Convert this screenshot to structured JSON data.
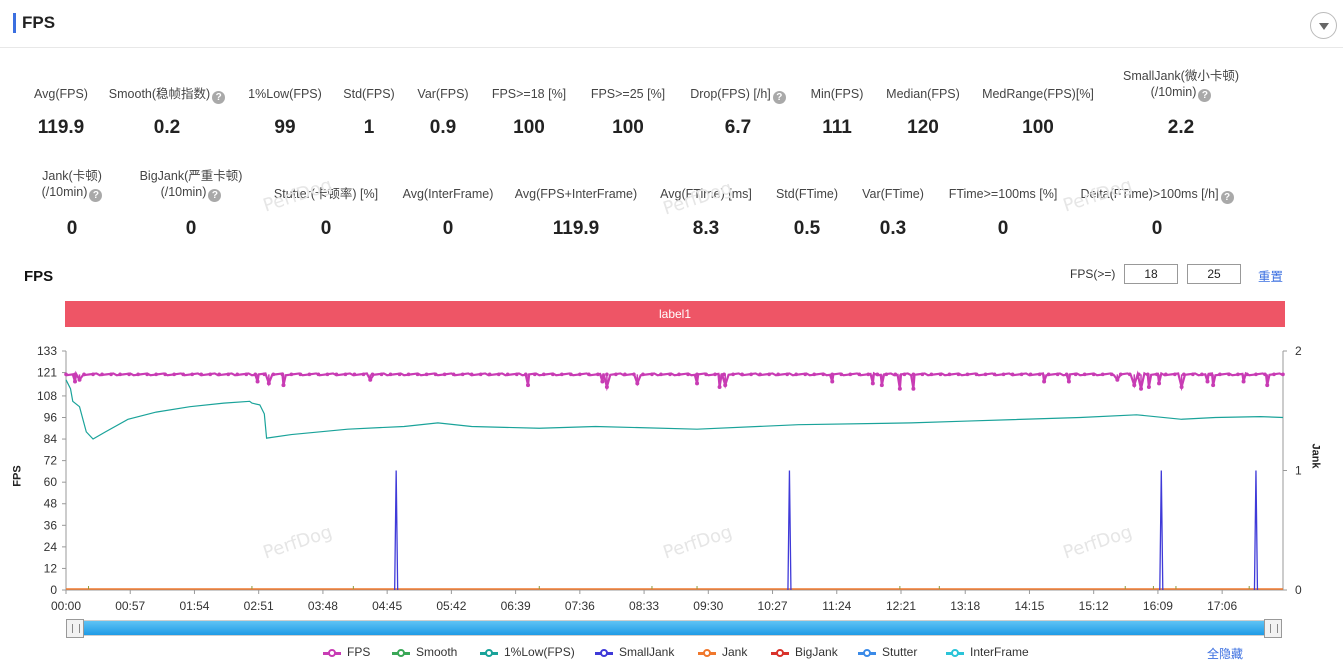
{
  "header": {
    "title": "FPS"
  },
  "metrics_row1": [
    {
      "label": "Avg(FPS)",
      "value": "119.9",
      "help": false
    },
    {
      "label": "Smooth(稳帧指数)",
      "value": "0.2",
      "help": true
    },
    {
      "label": "1%Low(FPS)",
      "value": "99",
      "help": false
    },
    {
      "label": "Std(FPS)",
      "value": "1",
      "help": false
    },
    {
      "label": "Var(FPS)",
      "value": "0.9",
      "help": false
    },
    {
      "label": "FPS>=18 [%]",
      "value": "100",
      "help": false
    },
    {
      "label": "FPS>=25 [%]",
      "value": "100",
      "help": false
    },
    {
      "label": "Drop(FPS) [/h]",
      "value": "6.7",
      "help": true
    },
    {
      "label": "Min(FPS)",
      "value": "111",
      "help": false
    },
    {
      "label": "Median(FPS)",
      "value": "120",
      "help": false
    },
    {
      "label": "MedRange(FPS)[%]",
      "value": "100",
      "help": false
    },
    {
      "label": "SmallJank(微小卡顿)",
      "label2": "(/10min)",
      "value": "2.2",
      "help": true
    }
  ],
  "metrics_row2": [
    {
      "label": "Jank(卡顿)",
      "label2": "(/10min)",
      "value": "0",
      "help": true
    },
    {
      "label": "BigJank(严重卡顿)",
      "label2": "(/10min)",
      "value": "0",
      "help": true
    },
    {
      "label": "Stutter(卡顿率) [%]",
      "value": "0",
      "help": false
    },
    {
      "label": "Avg(InterFrame)",
      "value": "0",
      "help": false
    },
    {
      "label": "Avg(FPS+InterFrame)",
      "value": "119.9",
      "help": false
    },
    {
      "label": "Avg(FTime) [ms]",
      "value": "8.3",
      "help": false
    },
    {
      "label": "Std(FTime)",
      "value": "0.5",
      "help": false
    },
    {
      "label": "Var(FTime)",
      "value": "0.3",
      "help": false
    },
    {
      "label": "FTime>=100ms [%]",
      "value": "0",
      "help": false
    },
    {
      "label": "Delta(FTime)>100ms [/h]",
      "value": "0",
      "help": true
    }
  ],
  "watermark": "PerfDog",
  "chart_controls": {
    "title": "FPS",
    "threshold_label": "FPS(>=)",
    "threshold_low": "18",
    "threshold_high": "25",
    "reset_label": "重置",
    "band_label": "label1",
    "hide_all_label": "全隐藏"
  },
  "chart_data": {
    "type": "line",
    "ylabel": "FPS",
    "y2label": "Jank",
    "yticks": [
      0,
      12,
      24,
      36,
      48,
      60,
      72,
      84,
      96,
      108,
      121,
      133
    ],
    "ylim": [
      0,
      133
    ],
    "y2ticks": [
      0,
      1,
      2
    ],
    "y2lim": [
      0,
      2
    ],
    "xticks": [
      "00:00",
      "00:57",
      "01:54",
      "02:51",
      "03:48",
      "04:45",
      "05:42",
      "06:39",
      "07:36",
      "08:33",
      "09:30",
      "10:27",
      "11:24",
      "12:21",
      "13:18",
      "14:15",
      "15:12",
      "16:09",
      "17:06"
    ],
    "duration_s": 1080,
    "series": [
      {
        "name": "FPS",
        "color": "#c83cb4",
        "baseline": 120,
        "drops": [
          [
            8,
            116
          ],
          [
            12,
            117
          ],
          [
            170,
            116
          ],
          [
            180,
            115
          ],
          [
            193,
            114
          ],
          [
            270,
            117
          ],
          [
            410,
            114
          ],
          [
            476,
            116
          ],
          [
            480,
            113
          ],
          [
            507,
            115
          ],
          [
            560,
            115
          ],
          [
            580,
            113
          ],
          [
            585,
            114
          ],
          [
            680,
            116
          ],
          [
            716,
            115
          ],
          [
            724,
            114
          ],
          [
            740,
            112
          ],
          [
            752,
            112
          ],
          [
            868,
            116
          ],
          [
            890,
            116
          ],
          [
            933,
            117
          ],
          [
            948,
            114
          ],
          [
            954,
            112
          ],
          [
            961,
            113
          ],
          [
            970,
            115
          ],
          [
            990,
            113
          ],
          [
            1013,
            116
          ],
          [
            1018,
            114
          ],
          [
            1045,
            116
          ],
          [
            1066,
            114
          ]
        ]
      },
      {
        "name": "Smooth",
        "color": "#3aa757",
        "values_note": "near zero"
      },
      {
        "name": "1%Low(FPS)",
        "color": "#1aa39a",
        "points": [
          [
            0,
            117
          ],
          [
            4,
            112
          ],
          [
            6,
            105
          ],
          [
            12,
            102
          ],
          [
            18,
            88
          ],
          [
            24,
            84
          ],
          [
            35,
            88
          ],
          [
            55,
            95
          ],
          [
            80,
            99
          ],
          [
            110,
            102
          ],
          [
            140,
            104
          ],
          [
            163,
            105
          ],
          [
            165,
            104
          ],
          [
            172,
            103
          ],
          [
            176,
            98
          ],
          [
            178,
            84.5
          ],
          [
            200,
            86.5
          ],
          [
            250,
            89.5
          ],
          [
            300,
            91
          ],
          [
            330,
            93
          ],
          [
            360,
            91
          ],
          [
            420,
            90
          ],
          [
            470,
            91
          ],
          [
            560,
            89.5
          ],
          [
            650,
            92
          ],
          [
            750,
            93
          ],
          [
            800,
            94
          ],
          [
            900,
            96
          ],
          [
            950,
            97.5
          ],
          [
            990,
            95
          ],
          [
            1020,
            96
          ],
          [
            1060,
            96.5
          ],
          [
            1080,
            96
          ]
        ]
      },
      {
        "name": "SmallJank",
        "color": "#3f3ad8",
        "spikes": [
          293,
          642,
          972,
          1056
        ],
        "axis": "y2"
      },
      {
        "name": "Jank",
        "color": "#f0782d"
      },
      {
        "name": "BigJank",
        "color": "#d9332b"
      },
      {
        "name": "Stutter",
        "color": "#3b8be8"
      },
      {
        "name": "InterFrame",
        "color": "#2bc4d8"
      }
    ]
  }
}
